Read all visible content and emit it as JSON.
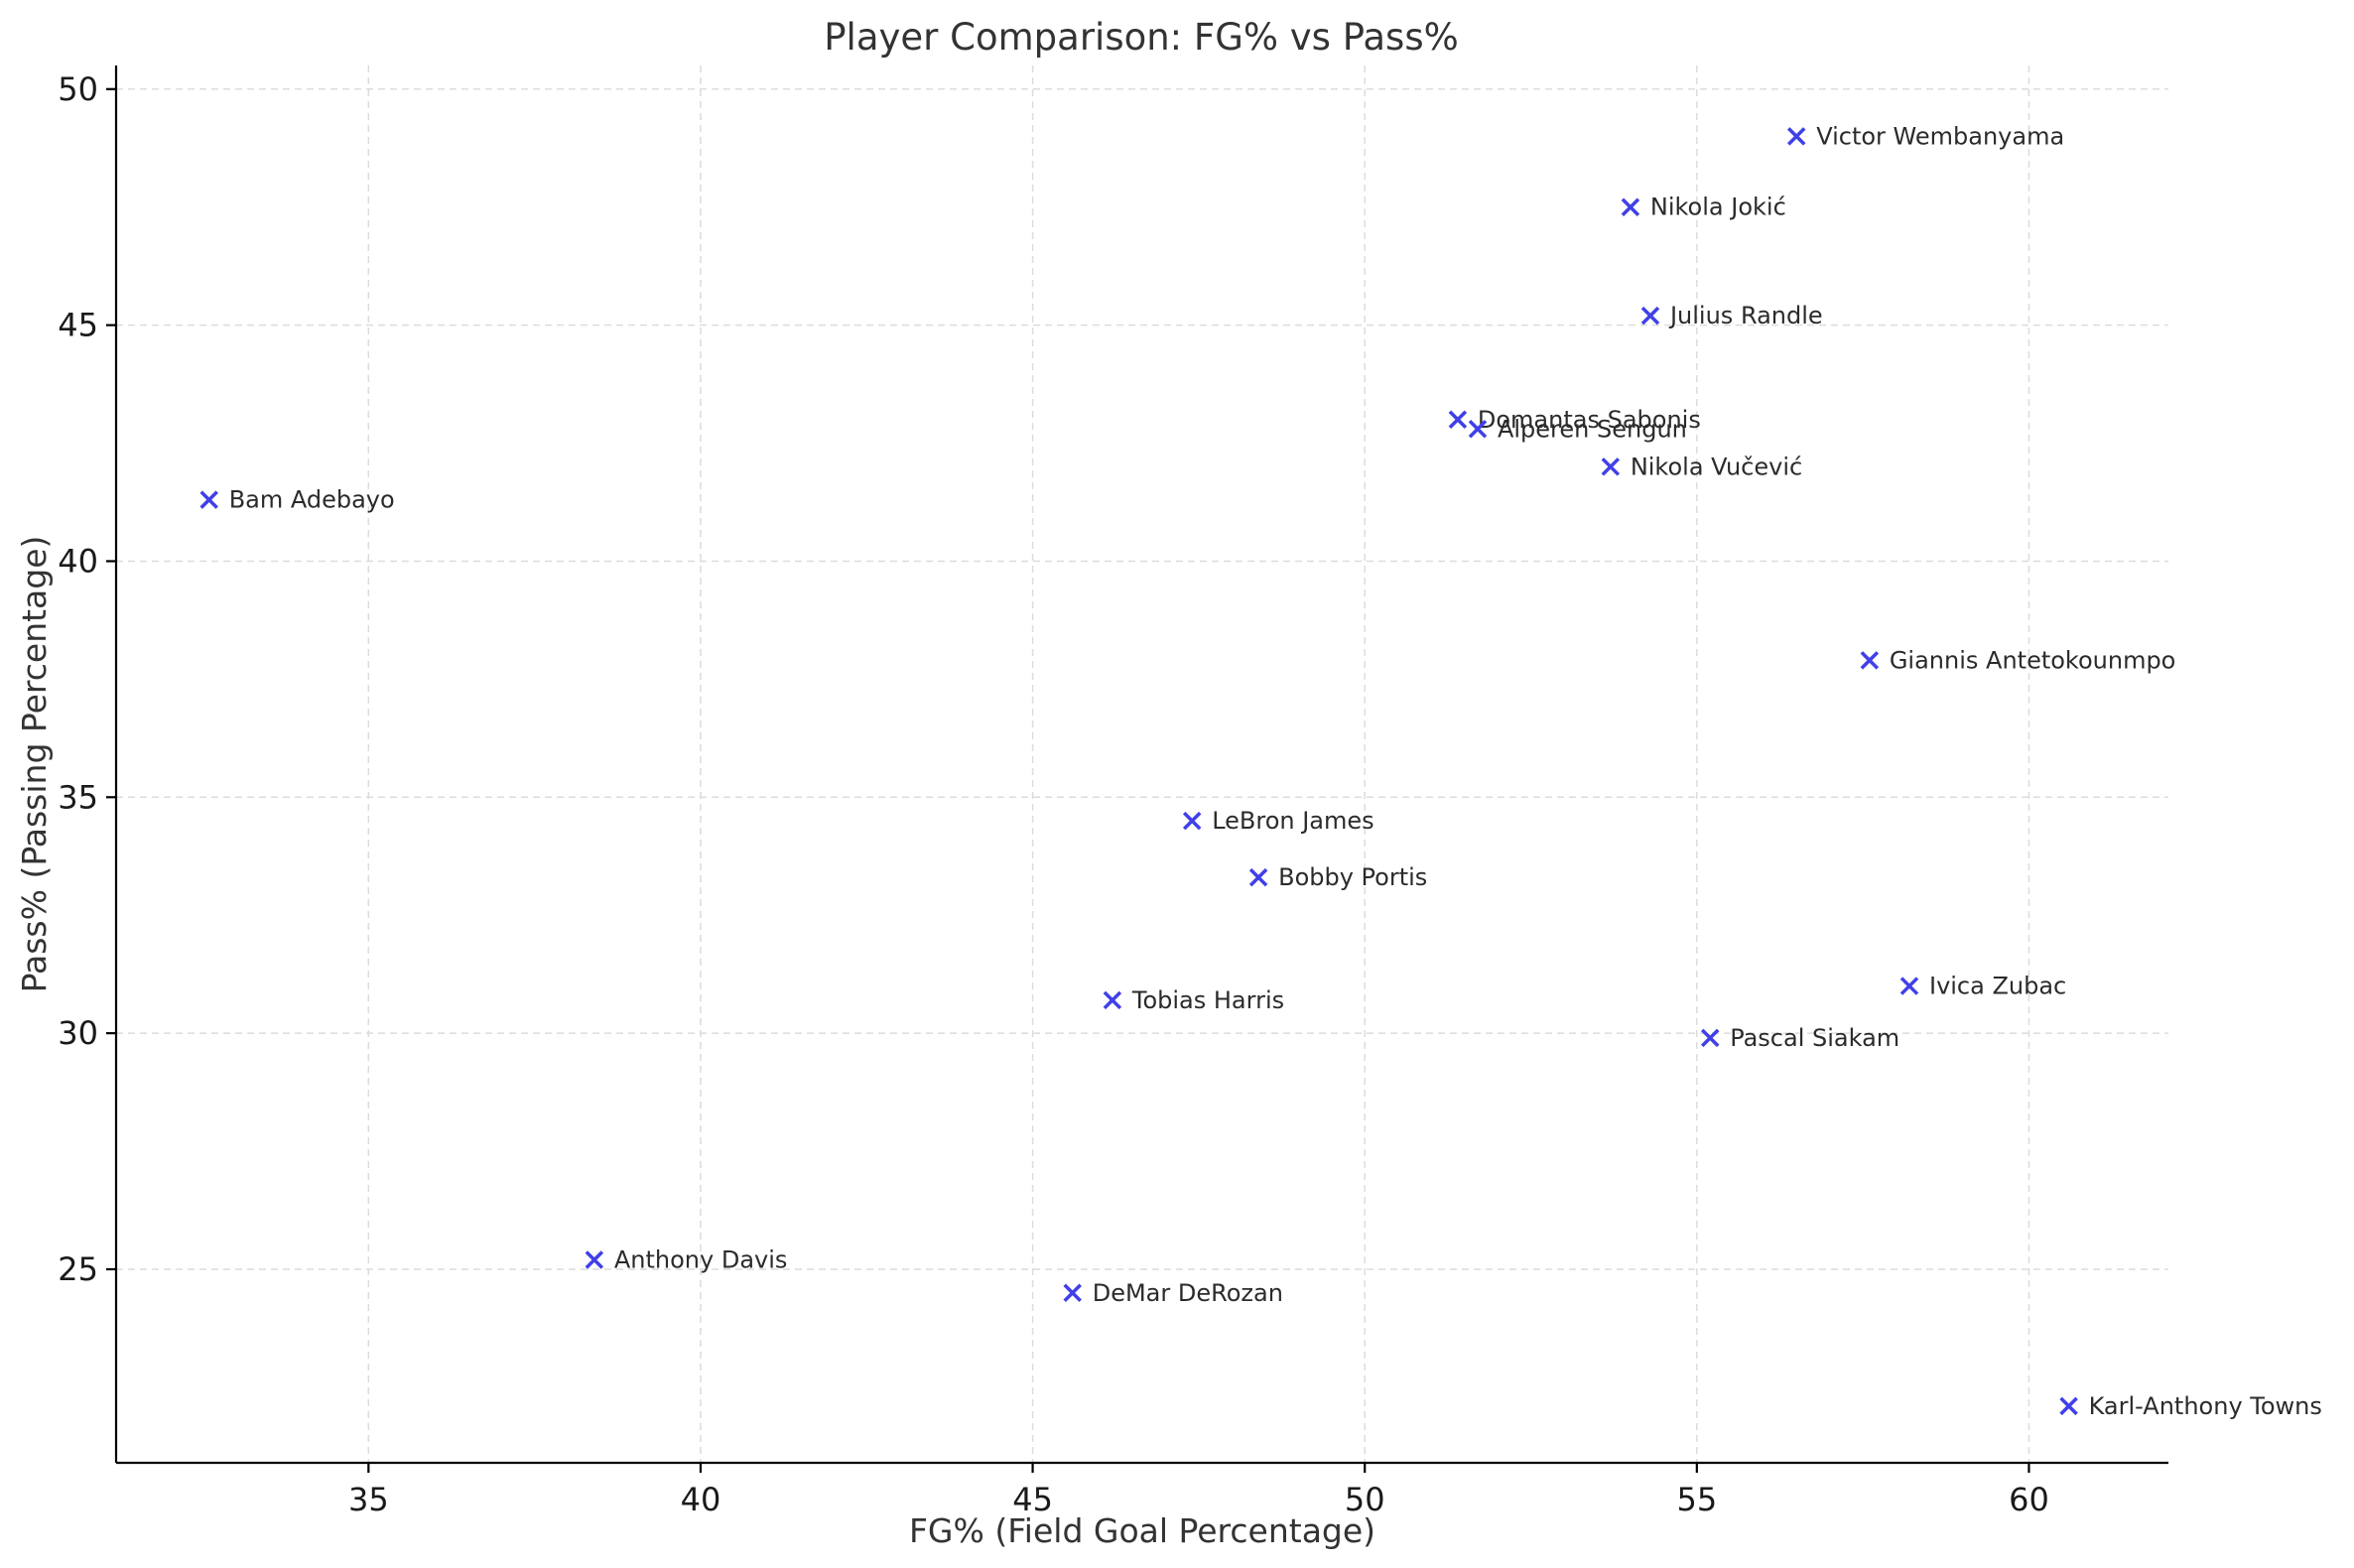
{
  "chart_data": {
    "type": "scatter",
    "title": "Player Comparison: FG% vs Pass%",
    "xlabel": "FG% (Field Goal Percentage)",
    "ylabel": "Pass% (Passing Percentage)",
    "xlim": [
      31.2,
      62.1
    ],
    "ylim": [
      20.9,
      50.5
    ],
    "xticks": [
      35,
      40,
      45,
      50,
      55,
      60
    ],
    "yticks": [
      25,
      30,
      35,
      40,
      45,
      50
    ],
    "grid": true,
    "marker": "x",
    "marker_color": "#4040e8",
    "points": [
      {
        "label": "Victor Wembanyama",
        "x": 56.5,
        "y": 49.0
      },
      {
        "label": "Nikola Jokić",
        "x": 54.0,
        "y": 47.5
      },
      {
        "label": "Julius Randle",
        "x": 54.3,
        "y": 45.2
      },
      {
        "label": "Domantas Sabonis",
        "x": 51.4,
        "y": 43.0
      },
      {
        "label": "Alperen Sengun",
        "x": 51.7,
        "y": 42.8
      },
      {
        "label": "Nikola Vučević",
        "x": 53.7,
        "y": 42.0
      },
      {
        "label": "Bam Adebayo",
        "x": 32.6,
        "y": 41.3
      },
      {
        "label": "Giannis Antetokounmpo",
        "x": 57.6,
        "y": 37.9
      },
      {
        "label": "LeBron James",
        "x": 47.4,
        "y": 34.5
      },
      {
        "label": "Bobby Portis",
        "x": 48.4,
        "y": 33.3
      },
      {
        "label": "Tobias Harris",
        "x": 46.2,
        "y": 30.7
      },
      {
        "label": "Ivica Zubac",
        "x": 58.2,
        "y": 31.0
      },
      {
        "label": "Pascal Siakam",
        "x": 55.2,
        "y": 29.9
      },
      {
        "label": "Anthony Davis",
        "x": 38.4,
        "y": 25.2
      },
      {
        "label": "DeMar DeRozan",
        "x": 45.6,
        "y": 24.5
      },
      {
        "label": "Karl-Anthony Towns",
        "x": 60.6,
        "y": 22.1
      }
    ]
  }
}
